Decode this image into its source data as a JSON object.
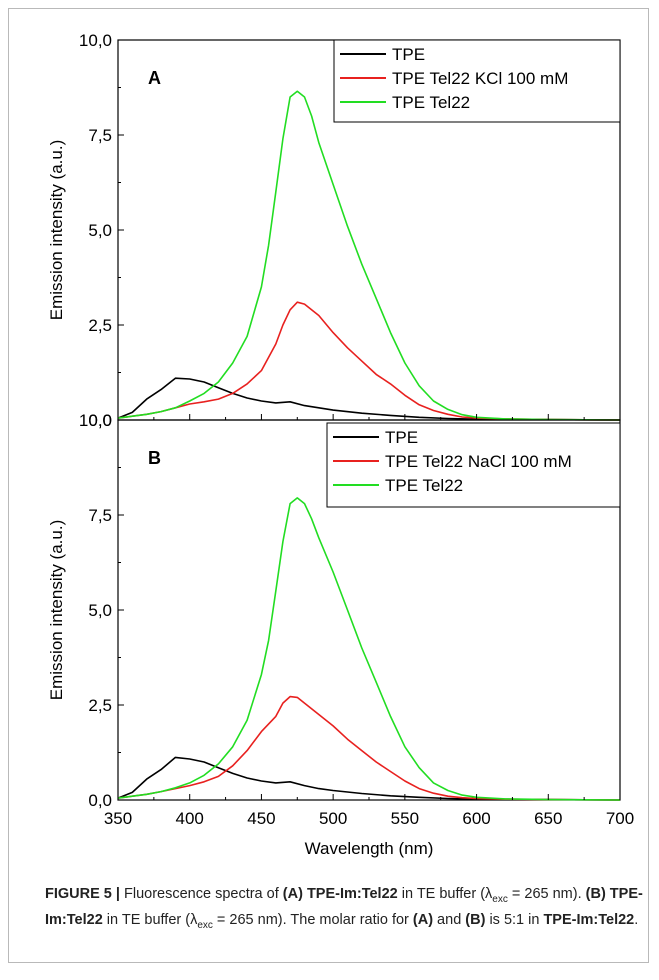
{
  "chart_data": [
    {
      "panel": "A",
      "type": "line",
      "ylabel": "Emission intensity (a.u.)",
      "ylim": [
        0,
        10
      ],
      "xlim": [
        350,
        700
      ],
      "yticks": [
        "0,0",
        "2,5",
        "5,0",
        "7,5",
        "10,0"
      ],
      "legend_position": "top-right",
      "series": [
        {
          "name": "TPE",
          "color": "#000000",
          "x": [
            350,
            360,
            370,
            380,
            390,
            400,
            410,
            420,
            430,
            440,
            450,
            460,
            470,
            480,
            490,
            500,
            520,
            540,
            560,
            580,
            600,
            650,
            700
          ],
          "y": [
            0.05,
            0.2,
            0.55,
            0.8,
            1.1,
            1.08,
            1.0,
            0.85,
            0.7,
            0.58,
            0.5,
            0.45,
            0.48,
            0.38,
            0.32,
            0.26,
            0.18,
            0.12,
            0.07,
            0.04,
            0.02,
            0.01,
            0.0
          ]
        },
        {
          "name": "TPE Tel22 KCl 100 mM",
          "color": "#e8211f",
          "x": [
            350,
            360,
            370,
            380,
            390,
            400,
            410,
            420,
            430,
            440,
            450,
            460,
            465,
            470,
            475,
            480,
            490,
            500,
            510,
            520,
            530,
            540,
            550,
            560,
            570,
            580,
            590,
            600,
            620,
            650,
            700
          ],
          "y": [
            0.05,
            0.1,
            0.15,
            0.22,
            0.32,
            0.42,
            0.48,
            0.55,
            0.7,
            0.95,
            1.3,
            2.0,
            2.5,
            2.9,
            3.1,
            3.05,
            2.75,
            2.3,
            1.9,
            1.55,
            1.2,
            0.95,
            0.65,
            0.4,
            0.25,
            0.15,
            0.08,
            0.05,
            0.03,
            0.01,
            0.0
          ]
        },
        {
          "name": "TPE Tel22",
          "color": "#22dd22",
          "x": [
            350,
            360,
            370,
            380,
            390,
            400,
            410,
            420,
            430,
            440,
            450,
            455,
            460,
            465,
            470,
            475,
            480,
            485,
            490,
            500,
            510,
            520,
            530,
            540,
            550,
            560,
            570,
            580,
            590,
            600,
            620,
            650,
            700
          ],
          "y": [
            0.05,
            0.1,
            0.15,
            0.22,
            0.32,
            0.5,
            0.7,
            1.0,
            1.5,
            2.2,
            3.5,
            4.6,
            6.0,
            7.4,
            8.5,
            8.65,
            8.5,
            8.0,
            7.3,
            6.2,
            5.1,
            4.1,
            3.2,
            2.3,
            1.5,
            0.9,
            0.5,
            0.28,
            0.14,
            0.07,
            0.03,
            0.01,
            0.0
          ]
        }
      ]
    },
    {
      "panel": "B",
      "type": "line",
      "xlabel": "Wavelength (nm)",
      "ylabel": "Emission intensity (a.u.)",
      "ylim": [
        0,
        10
      ],
      "xlim": [
        350,
        700
      ],
      "yticks": [
        "0,0",
        "2,5",
        "5,0",
        "7,5",
        "10,0"
      ],
      "xticks": [
        "350",
        "400",
        "450",
        "500",
        "550",
        "600",
        "650",
        "700"
      ],
      "legend_position": "top-right",
      "series": [
        {
          "name": "TPE",
          "color": "#000000",
          "x": [
            350,
            360,
            370,
            380,
            390,
            400,
            410,
            420,
            430,
            440,
            450,
            460,
            470,
            480,
            490,
            500,
            520,
            540,
            560,
            580,
            600,
            650,
            700
          ],
          "y": [
            0.05,
            0.2,
            0.55,
            0.8,
            1.12,
            1.08,
            1.0,
            0.85,
            0.7,
            0.58,
            0.5,
            0.45,
            0.48,
            0.38,
            0.3,
            0.25,
            0.17,
            0.11,
            0.07,
            0.04,
            0.02,
            0.01,
            0.0
          ]
        },
        {
          "name": "TPE Tel22 NaCl 100 mM",
          "color": "#e8211f",
          "x": [
            350,
            360,
            370,
            380,
            390,
            400,
            410,
            420,
            430,
            440,
            450,
            460,
            465,
            470,
            475,
            480,
            490,
            500,
            510,
            520,
            530,
            540,
            550,
            560,
            570,
            580,
            590,
            600,
            620,
            650,
            700
          ],
          "y": [
            0.05,
            0.1,
            0.15,
            0.22,
            0.3,
            0.38,
            0.48,
            0.62,
            0.9,
            1.3,
            1.8,
            2.2,
            2.55,
            2.72,
            2.7,
            2.55,
            2.25,
            1.95,
            1.6,
            1.3,
            1.0,
            0.75,
            0.5,
            0.3,
            0.18,
            0.1,
            0.06,
            0.04,
            0.02,
            0.01,
            0.0
          ]
        },
        {
          "name": "TPE Tel22",
          "color": "#22dd22",
          "x": [
            350,
            360,
            370,
            380,
            390,
            400,
            410,
            420,
            430,
            440,
            450,
            455,
            460,
            465,
            470,
            475,
            480,
            485,
            490,
            500,
            510,
            520,
            530,
            540,
            550,
            560,
            570,
            580,
            590,
            600,
            620,
            650,
            700
          ],
          "y": [
            0.05,
            0.1,
            0.15,
            0.22,
            0.32,
            0.45,
            0.65,
            0.95,
            1.4,
            2.1,
            3.3,
            4.2,
            5.5,
            6.8,
            7.8,
            7.95,
            7.8,
            7.4,
            6.9,
            6.0,
            5.0,
            4.0,
            3.1,
            2.2,
            1.4,
            0.85,
            0.45,
            0.25,
            0.13,
            0.07,
            0.03,
            0.01,
            0.0
          ]
        }
      ]
    }
  ],
  "caption": {
    "label": "FIGURE 5 |",
    "t1": " Fluorescence spectra of ",
    "b1": "(A) TPE-Im:Tel22",
    "t2": " in TE buffer (λ",
    "sub1": "exc",
    "t3": " = 265 nm). ",
    "b2": "(B) TPE-Im:Tel22",
    "t4": " in TE buffer (λ",
    "sub2": "exc",
    "t5": " = 265 nm). The molar ratio for ",
    "b3": "(A)",
    "t6": " and ",
    "b4": "(B)",
    "t7": " is 5:1 in ",
    "b5": "TPE-Im:Tel22",
    "t8": "."
  }
}
